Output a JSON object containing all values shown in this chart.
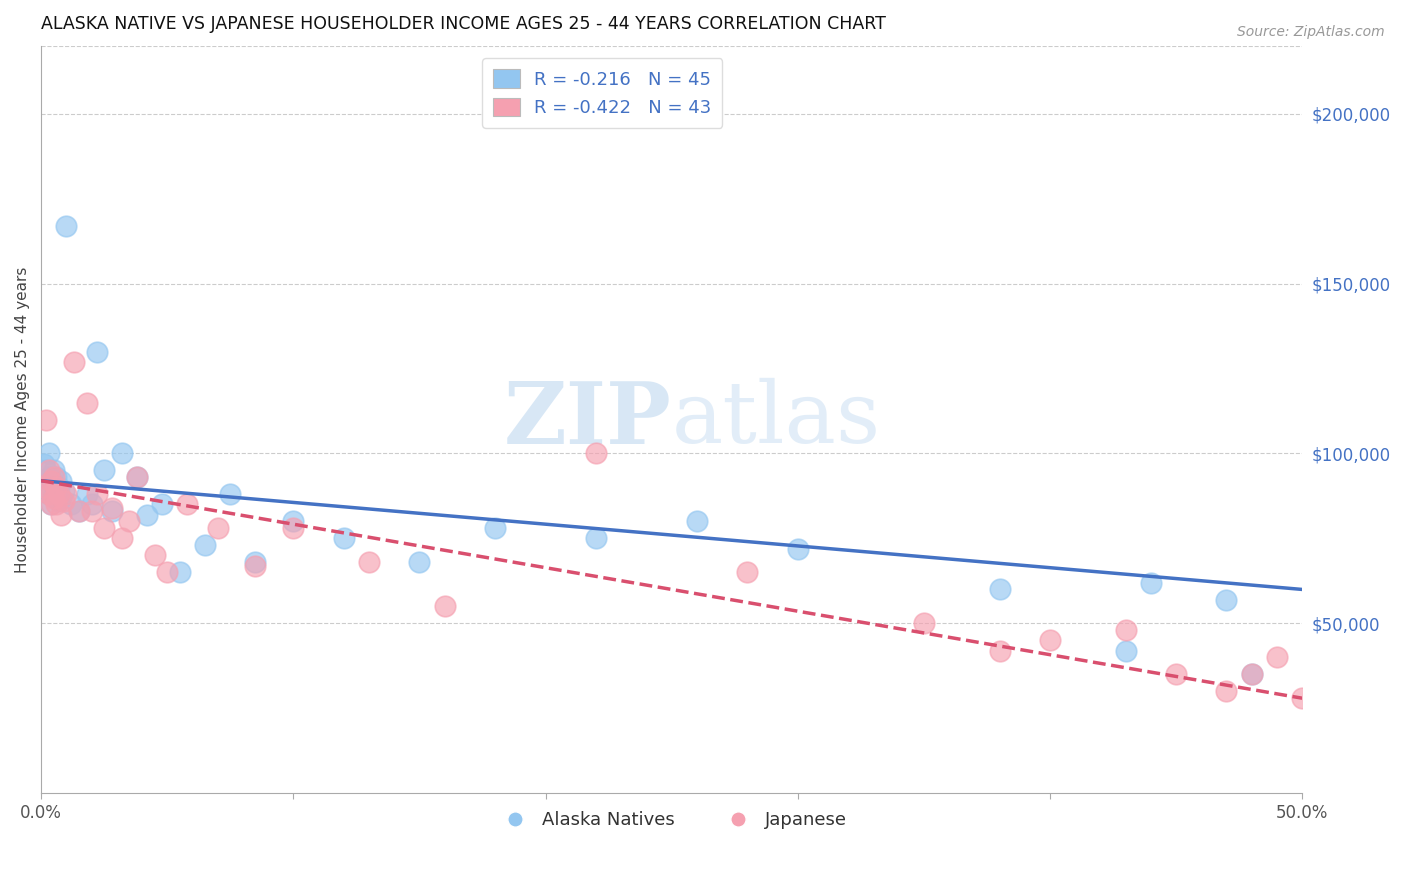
{
  "title": "ALASKA NATIVE VS JAPANESE HOUSEHOLDER INCOME AGES 25 - 44 YEARS CORRELATION CHART",
  "source": "Source: ZipAtlas.com",
  "ylabel": "Householder Income Ages 25 - 44 years",
  "xlim": [
    0.0,
    0.5
  ],
  "ylim": [
    0,
    220000
  ],
  "xticks": [
    0.0,
    0.1,
    0.2,
    0.3,
    0.4,
    0.5
  ],
  "xtick_labels": [
    "0.0%",
    "",
    "",
    "",
    "",
    "50.0%"
  ],
  "ytick_labels_right": [
    "$50,000",
    "$100,000",
    "$150,000",
    "$200,000"
  ],
  "yticks_right": [
    50000,
    100000,
    150000,
    200000
  ],
  "legend_r_alaska": "R = -0.216",
  "legend_n_alaska": "N = 45",
  "legend_r_japanese": "R = -0.422",
  "legend_n_japanese": "N = 43",
  "alaska_color": "#93c6f0",
  "japanese_color": "#f5a0b0",
  "alaska_line_color": "#4472c4",
  "japanese_line_color": "#d94f6e",
  "watermark_zip": "ZIP",
  "watermark_atlas": "atlas",
  "background_color": "#ffffff",
  "alaska_points_x": [
    0.001,
    0.002,
    0.002,
    0.003,
    0.003,
    0.003,
    0.004,
    0.004,
    0.005,
    0.005,
    0.006,
    0.006,
    0.007,
    0.007,
    0.008,
    0.008,
    0.009,
    0.01,
    0.012,
    0.015,
    0.018,
    0.02,
    0.022,
    0.025,
    0.028,
    0.032,
    0.038,
    0.042,
    0.048,
    0.055,
    0.065,
    0.075,
    0.085,
    0.1,
    0.12,
    0.15,
    0.18,
    0.22,
    0.26,
    0.3,
    0.38,
    0.43,
    0.44,
    0.47,
    0.48
  ],
  "alaska_points_y": [
    97000,
    90000,
    95000,
    88000,
    93000,
    100000,
    85000,
    92000,
    88000,
    95000,
    87000,
    93000,
    90000,
    86000,
    92000,
    87000,
    89000,
    167000,
    85000,
    83000,
    88000,
    85000,
    130000,
    95000,
    83000,
    100000,
    93000,
    82000,
    85000,
    65000,
    73000,
    88000,
    68000,
    80000,
    75000,
    68000,
    78000,
    75000,
    80000,
    72000,
    60000,
    42000,
    62000,
    57000,
    35000
  ],
  "japanese_points_x": [
    0.001,
    0.002,
    0.003,
    0.003,
    0.004,
    0.004,
    0.005,
    0.005,
    0.006,
    0.006,
    0.007,
    0.008,
    0.009,
    0.01,
    0.013,
    0.015,
    0.018,
    0.02,
    0.022,
    0.025,
    0.028,
    0.032,
    0.035,
    0.038,
    0.045,
    0.05,
    0.058,
    0.07,
    0.085,
    0.1,
    0.13,
    0.16,
    0.22,
    0.28,
    0.35,
    0.38,
    0.4,
    0.43,
    0.45,
    0.47,
    0.48,
    0.49,
    0.5
  ],
  "japanese_points_y": [
    90000,
    110000,
    88000,
    95000,
    85000,
    92000,
    87000,
    93000,
    85000,
    90000,
    88000,
    82000,
    86000,
    88000,
    127000,
    83000,
    115000,
    83000,
    88000,
    78000,
    84000,
    75000,
    80000,
    93000,
    70000,
    65000,
    85000,
    78000,
    67000,
    78000,
    68000,
    55000,
    100000,
    65000,
    50000,
    42000,
    45000,
    48000,
    35000,
    30000,
    35000,
    40000,
    28000
  ]
}
